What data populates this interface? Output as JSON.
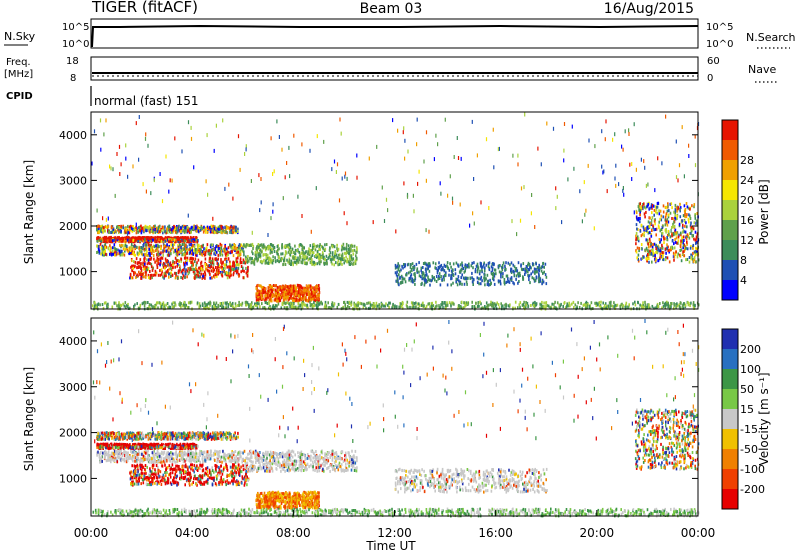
{
  "header": {
    "radar": "TIGER (fitACF)",
    "beam": "Beam 03",
    "date": "16/Aug/2015"
  },
  "strip1": {
    "left_label": "N.Sky",
    "right_label": "N.Search",
    "ticks": [
      "10^5",
      "10^0"
    ]
  },
  "strip2": {
    "left_label_1": "Freq.",
    "left_label_2": "[MHz]",
    "left_ticks": [
      "18",
      "8"
    ],
    "right_label": "Nave",
    "right_ticks": [
      "60",
      "0"
    ]
  },
  "cpid": {
    "label": "CPID",
    "value": "normal (fast) 151"
  },
  "chart_data": [
    {
      "type": "heatmap",
      "title": "Power",
      "ylabel": "Slant Range [km]",
      "xlabel": "",
      "ylim": [
        180,
        4500
      ],
      "y_ticks": [
        "1000",
        "2000",
        "3000",
        "4000"
      ],
      "colorbar": {
        "label": "Power [dB]",
        "ticks": [
          "4",
          "8",
          "12",
          "16",
          "20",
          "24",
          "28"
        ],
        "colors": [
          "#0000ff",
          "#1f50b4",
          "#3c8c5a",
          "#5fa04b",
          "#aad23c",
          "#f5e600",
          "#f0a000",
          "#f05a00",
          "#e61400"
        ]
      },
      "scatter_regions": [
        {
          "t": [
            0.2,
            5.8
          ],
          "r": [
            1850,
            2000
          ],
          "pattern": "mix"
        },
        {
          "t": [
            0.2,
            4.2
          ],
          "r": [
            1650,
            1750
          ],
          "pattern": "red-stripe"
        },
        {
          "t": [
            0.2,
            6.0
          ],
          "r": [
            1350,
            1600
          ],
          "pattern": "mix"
        },
        {
          "t": [
            1.5,
            6.2
          ],
          "r": [
            850,
            1300
          ],
          "pattern": "red-stripe"
        },
        {
          "t": [
            6.5,
            9.0
          ],
          "r": [
            350,
            700
          ],
          "pattern": "warm"
        },
        {
          "t": [
            6.0,
            10.5
          ],
          "r": [
            1150,
            1600
          ],
          "pattern": "green"
        },
        {
          "t": [
            12.0,
            18.0
          ],
          "r": [
            700,
            1200
          ],
          "pattern": "blue"
        },
        {
          "t": [
            21.5,
            24.0
          ],
          "r": [
            1200,
            2500
          ],
          "pattern": "mix"
        },
        {
          "t": [
            0.0,
            24.0
          ],
          "r": [
            180,
            330
          ],
          "pattern": "ground"
        }
      ]
    },
    {
      "type": "heatmap",
      "title": "Velocity",
      "ylabel": "Slant Range [km]",
      "xlabel": "Time UT",
      "ylim": [
        180,
        4500
      ],
      "x_ticks": [
        "00:00",
        "04:00",
        "08:00",
        "12:00",
        "16:00",
        "20:00",
        "00:00"
      ],
      "y_ticks": [
        "1000",
        "2000",
        "3000",
        "4000"
      ],
      "colorbar": {
        "label": "Velocity [m s⁻¹]",
        "ticks": [
          "200",
          "100",
          "50",
          "15",
          "-15",
          "-50",
          "-100",
          "-200"
        ],
        "colors": [
          "#2030b0",
          "#2870c0",
          "#3c9646",
          "#78c846",
          "#c8c8c8",
          "#f0c000",
          "#f08000",
          "#f04000",
          "#e60000"
        ]
      },
      "scatter_regions": [
        {
          "t": [
            0.2,
            5.8
          ],
          "r": [
            1850,
            2000
          ],
          "pattern": "vel-mix"
        },
        {
          "t": [
            0.2,
            4.2
          ],
          "r": [
            1650,
            1750
          ],
          "pattern": "red-stripe"
        },
        {
          "t": [
            0.2,
            6.0
          ],
          "r": [
            1350,
            1600
          ],
          "pattern": "grey"
        },
        {
          "t": [
            1.5,
            6.2
          ],
          "r": [
            850,
            1300
          ],
          "pattern": "red-stripe"
        },
        {
          "t": [
            6.5,
            9.0
          ],
          "r": [
            350,
            700
          ],
          "pattern": "orange"
        },
        {
          "t": [
            6.0,
            10.5
          ],
          "r": [
            1150,
            1600
          ],
          "pattern": "grey"
        },
        {
          "t": [
            12.0,
            18.0
          ],
          "r": [
            700,
            1200
          ],
          "pattern": "grey"
        },
        {
          "t": [
            21.5,
            24.0
          ],
          "r": [
            1200,
            2500
          ],
          "pattern": "vel-mix"
        },
        {
          "t": [
            0.0,
            24.0
          ],
          "r": [
            180,
            330
          ],
          "pattern": "ground"
        }
      ]
    }
  ]
}
